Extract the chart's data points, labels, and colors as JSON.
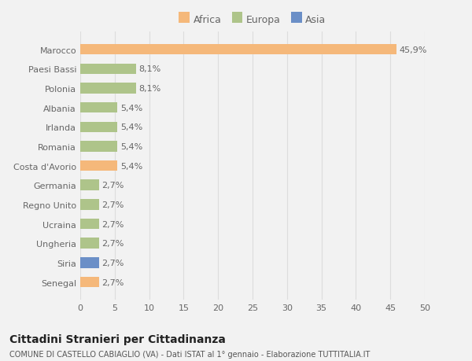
{
  "categories": [
    "Senegal",
    "Siria",
    "Ungheria",
    "Ucraina",
    "Regno Unito",
    "Germania",
    "Costa d'Avorio",
    "Romania",
    "Irlanda",
    "Albania",
    "Polonia",
    "Paesi Bassi",
    "Marocco"
  ],
  "values": [
    2.7,
    2.7,
    2.7,
    2.7,
    2.7,
    2.7,
    5.4,
    5.4,
    5.4,
    5.4,
    8.1,
    8.1,
    45.9
  ],
  "labels": [
    "2,7%",
    "2,7%",
    "2,7%",
    "2,7%",
    "2,7%",
    "2,7%",
    "5,4%",
    "5,4%",
    "5,4%",
    "5,4%",
    "8,1%",
    "8,1%",
    "45,9%"
  ],
  "colors": [
    "#f5b87a",
    "#6b8fc7",
    "#aec48a",
    "#aec48a",
    "#aec48a",
    "#aec48a",
    "#f5b87a",
    "#aec48a",
    "#aec48a",
    "#aec48a",
    "#aec48a",
    "#aec48a",
    "#f5b87a"
  ],
  "legend_labels": [
    "Africa",
    "Europa",
    "Asia"
  ],
  "legend_colors": [
    "#f5b87a",
    "#aec48a",
    "#6b8fc7"
  ],
  "title": "Cittadini Stranieri per Cittadinanza",
  "subtitle": "COMUNE DI CASTELLO CABIAGLIO (VA) - Dati ISTAT al 1° gennaio - Elaborazione TUTTITALIA.IT",
  "xlim": [
    0,
    50
  ],
  "xticks": [
    0,
    5,
    10,
    15,
    20,
    25,
    30,
    35,
    40,
    45,
    50
  ],
  "background_color": "#f2f2f2",
  "bar_bg_color": "#ffffff",
  "grid_color": "#dddddd",
  "text_color": "#666666",
  "label_fontsize": 8,
  "tick_fontsize": 8
}
